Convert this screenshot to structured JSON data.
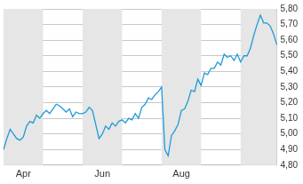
{
  "chart_data": {
    "type": "line",
    "categories": [
      null,
      null,
      null,
      null,
      null,
      null,
      "Apr",
      null,
      null,
      null,
      null,
      null,
      null,
      null,
      null,
      null,
      null,
      null,
      null,
      null,
      null,
      null,
      null,
      null,
      null,
      null,
      null,
      null,
      null,
      null,
      "Jun",
      null,
      null,
      null,
      null,
      null,
      null,
      null,
      null,
      null,
      null,
      null,
      null,
      null,
      null,
      null,
      null,
      null,
      null,
      null,
      null,
      null,
      null,
      null,
      "Aug",
      null,
      null,
      null,
      null,
      null,
      null,
      null,
      null,
      null,
      null,
      null,
      null,
      null,
      null,
      null,
      null,
      null,
      null,
      null,
      null,
      null,
      null,
      null,
      null,
      null,
      null,
      null,
      null,
      null
    ],
    "values": [
      4.9,
      4.97,
      5.03,
      5.0,
      4.97,
      4.96,
      4.98,
      5.05,
      5.08,
      5.07,
      5.12,
      5.1,
      5.13,
      5.15,
      5.13,
      5.16,
      5.19,
      5.18,
      5.16,
      5.14,
      5.16,
      5.11,
      5.14,
      5.13,
      5.13,
      5.14,
      5.17,
      5.15,
      5.06,
      4.97,
      5.0,
      5.05,
      5.03,
      5.07,
      5.05,
      5.08,
      5.09,
      5.07,
      5.1,
      5.09,
      5.13,
      5.1,
      5.17,
      5.19,
      5.23,
      5.22,
      5.25,
      5.27,
      5.3,
      4.9,
      4.86,
      4.99,
      5.02,
      5.06,
      5.15,
      5.16,
      5.21,
      5.28,
      5.27,
      5.35,
      5.31,
      5.39,
      5.38,
      5.42,
      5.42,
      5.46,
      5.44,
      5.51,
      5.49,
      5.5,
      5.47,
      5.51,
      5.46,
      5.5,
      5.5,
      5.55,
      5.63,
      5.7,
      5.76,
      5.71,
      5.71,
      5.69,
      5.64,
      5.57
    ],
    "color": "#1e9bd7",
    "ylim": [
      4.8,
      5.8
    ],
    "yticks": [
      {
        "value": 4.8,
        "label": "4,80"
      },
      {
        "value": 4.9,
        "label": "4,90"
      },
      {
        "value": 5.0,
        "label": "5,00"
      },
      {
        "value": 5.1,
        "label": "5,10"
      },
      {
        "value": 5.2,
        "label": "5,20"
      },
      {
        "value": 5.3,
        "label": "5,30"
      },
      {
        "value": 5.4,
        "label": "5,40"
      },
      {
        "value": 5.5,
        "label": "5,50"
      },
      {
        "value": 5.6,
        "label": "5,60"
      },
      {
        "value": 5.7,
        "label": "5,70"
      },
      {
        "value": 5.8,
        "label": "5,80"
      }
    ],
    "grid": true
  }
}
